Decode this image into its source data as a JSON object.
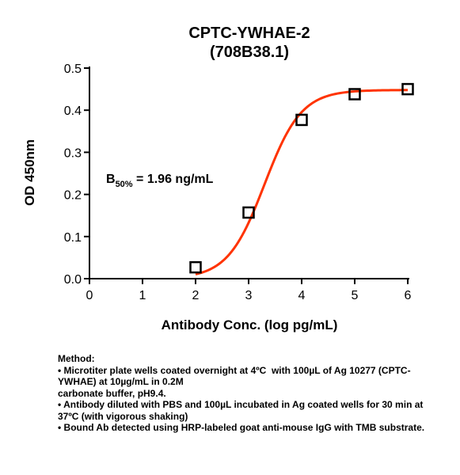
{
  "chart_data": {
    "type": "scatter",
    "title": [
      "CPTC-YWHAE-2",
      "(708B38.1)"
    ],
    "xlabel": "Antibody Conc. (log pg/mL)",
    "ylabel": "OD 450nm",
    "xlim": [
      0,
      6
    ],
    "ylim": [
      0,
      0.5
    ],
    "xticks": [
      0,
      1,
      2,
      3,
      4,
      5,
      6
    ],
    "yticks": [
      0.0,
      0.1,
      0.2,
      0.3,
      0.4,
      0.5
    ],
    "ytick_labels": [
      "0.0",
      "0.1",
      "0.2",
      "0.3",
      "0.4",
      "0.5"
    ],
    "series": [
      {
        "x": [
          2,
          3,
          4,
          5,
          6
        ],
        "y": [
          0.027,
          0.157,
          0.377,
          0.438,
          0.45
        ],
        "marker": "square",
        "color": "#000000"
      }
    ],
    "fit_curve": {
      "model": "sigmoid",
      "bottom": 0.0,
      "top": 0.448,
      "logEC50": 3.3,
      "hill": 1.25,
      "x_range": [
        2,
        6
      ],
      "color": "#ff3300"
    },
    "annotation": {
      "prefix": "B",
      "subscript": "50%",
      "text": " = 1.96 ng/mL"
    },
    "grid": false
  },
  "method": {
    "heading": "Method:",
    "lines": [
      "• Microtiter plate wells coated overnight at 4ºC  with 100µL of Ag 10277 (CPTC-YWHAE) at 10µg/mL in 0.2M",
      "carbonate buffer, pH9.4.",
      "• Antibody diluted with PBS and 100µL incubated in Ag coated wells for 30 min at 37ºC (with vigorous shaking)",
      "• Bound Ab detected using HRP-labeled goat anti-mouse IgG with TMB substrate."
    ]
  }
}
